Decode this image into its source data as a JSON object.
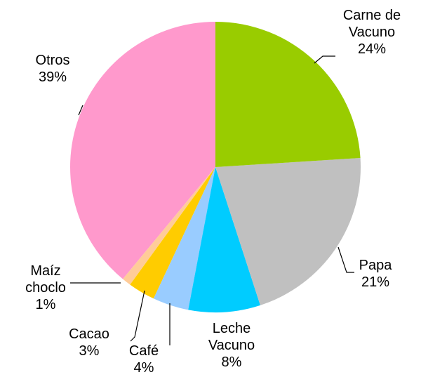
{
  "chart_data": {
    "type": "pie",
    "categories": [
      "Carne de Vacuno",
      "Papa",
      "Leche Vacuno",
      "Café",
      "Cacao",
      "Maíz choclo",
      "Otros"
    ],
    "values": [
      24,
      21,
      8,
      4,
      3,
      1,
      39
    ],
    "value_labels": [
      "24%",
      "21%",
      "8%",
      "4%",
      "3%",
      "1%",
      "39%"
    ],
    "colors": [
      "#99cc00",
      "#c0c0c0",
      "#00ccff",
      "#99ccff",
      "#ffcc00",
      "#ffcc99",
      "#ff99cc"
    ]
  }
}
